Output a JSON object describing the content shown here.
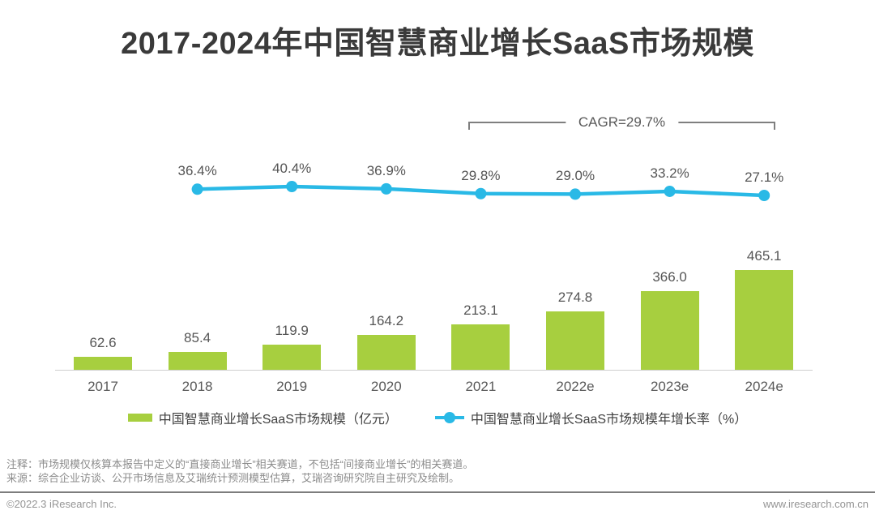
{
  "title": "2017-2024年中国智慧商业增长SaaS市场规模",
  "chart_data": {
    "type": "bar",
    "title": "2017-2024年中国智慧商业增长SaaS市场规模",
    "categories": [
      "2017",
      "2018",
      "2019",
      "2020",
      "2021",
      "2022e",
      "2023e",
      "2024e"
    ],
    "grid": false,
    "legend_position": "bottom",
    "ylim_hint": [
      0,
      500
    ],
    "bar_series": {
      "name": "中国智慧商业增长SaaS市场规模（亿元）",
      "unit": "亿元",
      "color": "#a7cf3f",
      "values": [
        62.6,
        85.4,
        119.9,
        164.2,
        213.1,
        274.8,
        366.0,
        465.1
      ],
      "labels": [
        "62.6",
        "85.4",
        "119.9",
        "164.2",
        "213.1",
        "274.8",
        "366.0",
        "465.1"
      ]
    },
    "line_series": {
      "name": "中国智慧商业增长SaaS市场规模年增长率（%）",
      "unit": "%",
      "color": "#29b9e6",
      "categories": [
        "2018",
        "2019",
        "2020",
        "2021",
        "2022e",
        "2023e",
        "2024e"
      ],
      "values": [
        36.4,
        40.4,
        36.9,
        29.8,
        29.0,
        33.2,
        27.1
      ],
      "labels": [
        "36.4%",
        "40.4%",
        "36.9%",
        "29.8%",
        "29.0%",
        "33.2%",
        "27.1%"
      ]
    },
    "annotation": {
      "text": "CAGR=29.7%",
      "span_categories": [
        "2021",
        "2024e"
      ]
    }
  },
  "legend": {
    "items": [
      {
        "label": "中国智慧商业增长SaaS市场规模（亿元）",
        "marker": "square",
        "color": "#a7cf3f"
      },
      {
        "label": "中国智慧商业增长SaaS市场规模年增长率（%）",
        "marker": "line-dot",
        "color": "#29b9e6"
      }
    ]
  },
  "notes": {
    "line1": "注释：市场规模仅核算本报告中定义的“直接商业增长”相关赛道，不包括“间接商业增长”的相关赛道。",
    "line2": "来源：综合企业访谈、公开市场信息及艾瑞统计预测模型估算，艾瑞咨询研究院自主研究及绘制。"
  },
  "footer": {
    "left": "©2022.3 iResearch Inc.",
    "right": "www.iresearch.com.cn"
  }
}
